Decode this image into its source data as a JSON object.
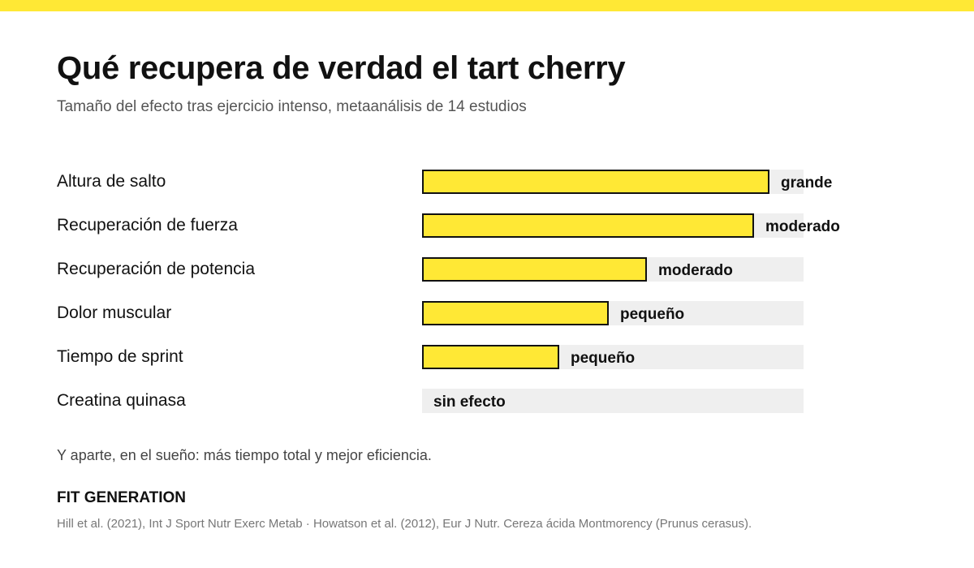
{
  "title": "Qué recupera de verdad el tart cherry",
  "subtitle": "Tamaño del efecto tras ejercicio intenso, metaanálisis de 14 estudios",
  "footnote": "Y aparte, en el sueño: más tiempo total y mejor eficiencia.",
  "brand": "FIT GENERATION",
  "sources": "Hill et al. (2021), Int J Sport Nutr Exerc Metab · Howatson et al. (2012), Eur J Nutr. Cereza ácida Montmorency (Prunus cerasus).",
  "colors": {
    "accent": "#ffe835",
    "bar_border": "#111111",
    "track": "#efefef"
  },
  "chart_data": {
    "type": "bar",
    "orientation": "horizontal",
    "categories": [
      "Altura de salto",
      "Recuperación de fuerza",
      "Recuperación de potencia",
      "Dolor muscular",
      "Tiempo de sprint",
      "Creatina quinasa"
    ],
    "values": [
      0.91,
      0.87,
      0.59,
      0.49,
      0.36,
      0
    ],
    "value_labels": [
      "grande",
      "moderado",
      "moderado",
      "pequeño",
      "pequeño",
      "sin efecto"
    ],
    "xlim": [
      0,
      1
    ],
    "grid": false,
    "legend": "none"
  }
}
